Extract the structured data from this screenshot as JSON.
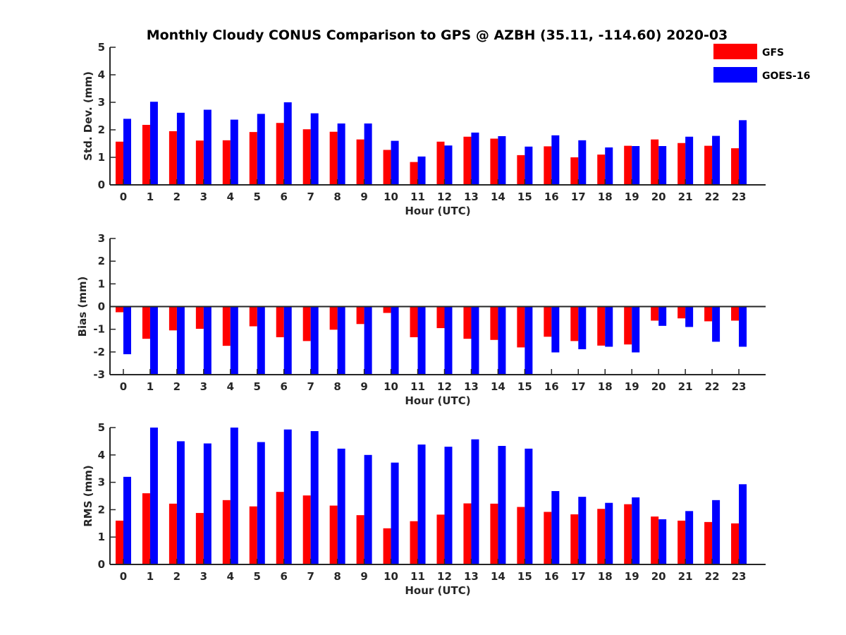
{
  "colors": {
    "gfs": "#ff0000",
    "goes": "#0000ff",
    "axis": "#262626"
  },
  "chart_data": [
    {
      "type": "bar",
      "title": "Monthly Cloudy CONUS Comparison to GPS @ AZBH (35.11, -114.60) 2020-03",
      "xlabel": "Hour (UTC)",
      "ylabel": "Std. Dev. (mm)",
      "ylim": [
        0,
        5
      ],
      "yticks": [
        0,
        1,
        2,
        3,
        4,
        5
      ],
      "legend": {
        "placement": "top-right"
      },
      "categories": [
        "0",
        "1",
        "2",
        "3",
        "4",
        "5",
        "6",
        "7",
        "8",
        "9",
        "10",
        "11",
        "12",
        "13",
        "14",
        "15",
        "16",
        "17",
        "18",
        "19",
        "20",
        "21",
        "22",
        "23"
      ],
      "series": [
        {
          "name": "GFS",
          "values": [
            1.57,
            2.18,
            1.95,
            1.61,
            1.62,
            1.92,
            2.25,
            2.02,
            1.93,
            1.65,
            1.27,
            0.83,
            1.57,
            1.75,
            1.68,
            1.08,
            1.4,
            1.0,
            1.1,
            1.42,
            1.65,
            1.52,
            1.42,
            1.33
          ]
        },
        {
          "name": "GOES-16",
          "values": [
            2.4,
            3.02,
            2.62,
            2.73,
            2.37,
            2.58,
            3.0,
            2.6,
            2.23,
            2.23,
            1.6,
            1.03,
            1.43,
            1.9,
            1.77,
            1.39,
            1.8,
            1.62,
            1.36,
            1.41,
            1.41,
            1.75,
            1.78,
            2.35
          ]
        }
      ]
    },
    {
      "type": "bar",
      "xlabel": "Hour (UTC)",
      "ylabel": "Bias (mm)",
      "ylim": [
        -3,
        3
      ],
      "yticks": [
        -3,
        -2,
        -1,
        0,
        1,
        2,
        3
      ],
      "zero_line": true,
      "categories": [
        "0",
        "1",
        "2",
        "3",
        "4",
        "5",
        "6",
        "7",
        "8",
        "9",
        "10",
        "11",
        "12",
        "13",
        "14",
        "15",
        "16",
        "17",
        "18",
        "19",
        "20",
        "21",
        "22",
        "23"
      ],
      "series": [
        {
          "name": "GFS",
          "values": [
            -0.25,
            -1.42,
            -1.05,
            -0.98,
            -1.73,
            -0.87,
            -1.35,
            -1.52,
            -1.02,
            -0.77,
            -0.28,
            -1.35,
            -0.95,
            -1.42,
            -1.47,
            -1.8,
            -1.33,
            -1.52,
            -1.72,
            -1.67,
            -0.62,
            -0.52,
            -0.65,
            -0.62
          ]
        },
        {
          "name": "GOES-16",
          "values": [
            -2.1,
            -3.0,
            -3.0,
            -3.0,
            -3.0,
            -3.0,
            -3.0,
            -3.0,
            -3.0,
            -3.0,
            -3.0,
            -3.0,
            -3.0,
            -3.0,
            -3.0,
            -3.0,
            -2.02,
            -1.88,
            -1.77,
            -2.02,
            -0.85,
            -0.9,
            -1.55,
            -1.77
          ]
        }
      ]
    },
    {
      "type": "bar",
      "xlabel": "Hour (UTC)",
      "ylabel": "RMS (mm)",
      "ylim": [
        0,
        5
      ],
      "yticks": [
        0,
        1,
        2,
        3,
        4,
        5
      ],
      "categories": [
        "0",
        "1",
        "2",
        "3",
        "4",
        "5",
        "6",
        "7",
        "8",
        "9",
        "10",
        "11",
        "12",
        "13",
        "14",
        "15",
        "16",
        "17",
        "18",
        "19",
        "20",
        "21",
        "22",
        "23"
      ],
      "series": [
        {
          "name": "GFS",
          "values": [
            1.6,
            2.6,
            2.22,
            1.88,
            2.35,
            2.12,
            2.65,
            2.52,
            2.15,
            1.8,
            1.32,
            1.58,
            1.82,
            2.23,
            2.22,
            2.1,
            1.92,
            1.83,
            2.03,
            2.2,
            1.75,
            1.6,
            1.55,
            1.5
          ]
        },
        {
          "name": "GOES-16",
          "values": [
            3.2,
            5.0,
            4.5,
            4.42,
            5.0,
            4.47,
            4.93,
            4.87,
            4.23,
            4.0,
            3.72,
            4.38,
            4.3,
            4.57,
            4.33,
            4.23,
            2.68,
            2.47,
            2.25,
            2.45,
            1.65,
            1.95,
            2.35,
            2.93
          ]
        }
      ]
    }
  ]
}
